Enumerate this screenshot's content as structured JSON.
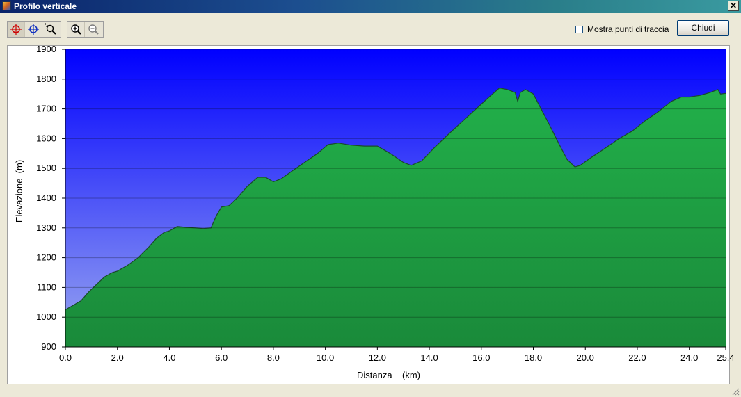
{
  "window": {
    "title": "Profilo verticale",
    "close_symbol": "✕"
  },
  "toolbar": {
    "tools": [
      {
        "name": "crosshair-red-icon",
        "color": "#cc0000"
      },
      {
        "name": "crosshair-blue-icon",
        "color": "#1030c0"
      },
      {
        "name": "zoom-region-icon",
        "color": "#000000"
      }
    ],
    "zoom_tools": [
      {
        "name": "zoom-in-icon"
      },
      {
        "name": "zoom-out-icon"
      }
    ],
    "show_track_points_label": "Mostra punti di traccia",
    "close_label": "Chiudi"
  },
  "chart_data": {
    "type": "area",
    "xlabel": "Distanza    (km)",
    "ylabel": "Elevazione  (m)",
    "xlim": [
      0,
      25.4
    ],
    "ylim": [
      900,
      1900
    ],
    "x_ticks": [
      0,
      2,
      4,
      6,
      8,
      10,
      12,
      14,
      16,
      18,
      20,
      22,
      24,
      25.4
    ],
    "x_tick_labels": [
      "0.0",
      "2.0",
      "4.0",
      "6.0",
      "8.0",
      "10.0",
      "12.0",
      "14.0",
      "16.0",
      "18.0",
      "20.0",
      "22.0",
      "24.0",
      "25.4"
    ],
    "y_ticks": [
      900,
      1000,
      1100,
      1200,
      1300,
      1400,
      1500,
      1600,
      1700,
      1800,
      1900
    ],
    "y_tick_labels": [
      "900",
      "1000",
      "1100",
      "1200",
      "1300",
      "1400",
      "1500",
      "1600",
      "1700",
      "1800",
      "1900"
    ],
    "grid": true,
    "colors": {
      "sky_top": "#0000ff",
      "sky_bottom": "#9aa8f0",
      "fill_top": "#22b04a",
      "fill_bottom": "#1a8a3a",
      "line": "#1a4a2a"
    },
    "x": [
      0,
      0.3,
      0.6,
      0.9,
      1.2,
      1.5,
      1.8,
      2.0,
      2.4,
      2.8,
      3.2,
      3.5,
      3.8,
      4.0,
      4.2,
      4.3,
      4.6,
      5.0,
      5.3,
      5.6,
      5.8,
      6.0,
      6.3,
      6.6,
      7.0,
      7.4,
      7.7,
      8.0,
      8.3,
      8.7,
      9.2,
      9.7,
      10.1,
      10.5,
      11.0,
      11.5,
      12.0,
      12.5,
      13.0,
      13.3,
      13.7,
      14.2,
      14.8,
      15.3,
      15.8,
      16.3,
      16.7,
      17.0,
      17.3,
      17.4,
      17.5,
      17.7,
      17.8,
      18.0,
      18.3,
      18.6,
      19.0,
      19.3,
      19.6,
      19.8,
      20.2,
      20.8,
      21.3,
      21.8,
      22.3,
      22.8,
      23.3,
      23.7,
      24.0,
      24.4,
      24.8,
      25.1,
      25.2,
      25.4
    ],
    "values": [
      1025,
      1040,
      1055,
      1085,
      1110,
      1135,
      1150,
      1155,
      1175,
      1200,
      1235,
      1265,
      1285,
      1290,
      1300,
      1305,
      1302,
      1300,
      1298,
      1300,
      1340,
      1370,
      1375,
      1400,
      1440,
      1470,
      1470,
      1455,
      1465,
      1490,
      1520,
      1550,
      1580,
      1585,
      1578,
      1575,
      1575,
      1550,
      1520,
      1510,
      1525,
      1570,
      1620,
      1660,
      1700,
      1740,
      1770,
      1765,
      1755,
      1725,
      1755,
      1765,
      1760,
      1750,
      1700,
      1650,
      1580,
      1530,
      1505,
      1510,
      1535,
      1570,
      1600,
      1625,
      1660,
      1690,
      1725,
      1740,
      1740,
      1745,
      1755,
      1765,
      1750,
      1752
    ]
  }
}
